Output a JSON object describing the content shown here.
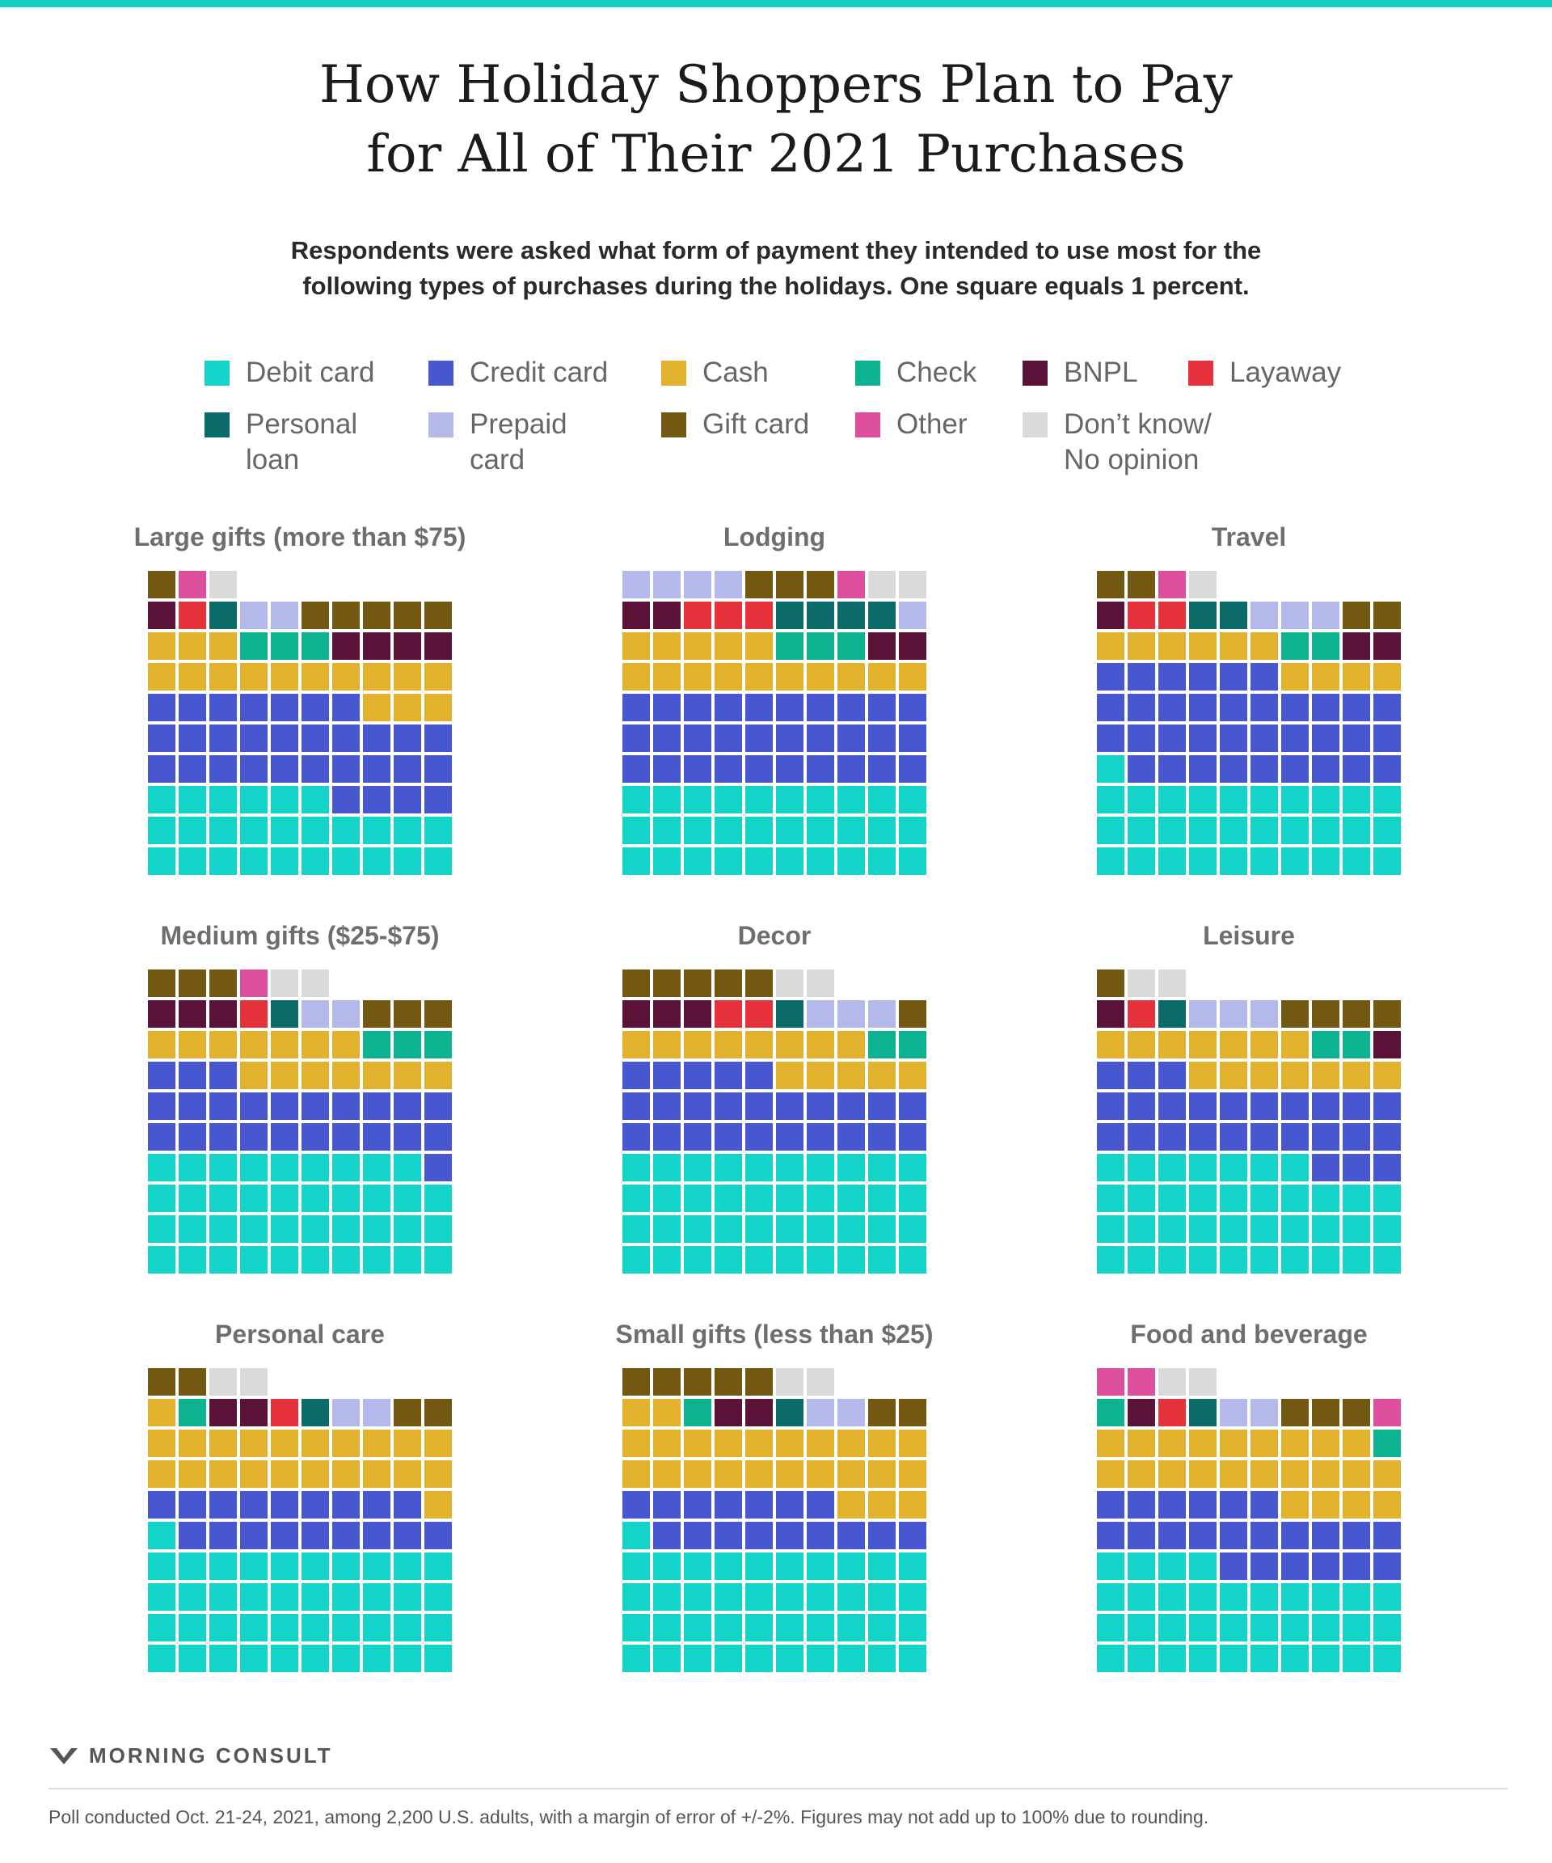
{
  "header": {
    "title_line1": "How Holiday Shoppers Plan to Pay",
    "title_line2": "for All of Their 2021 Purchases",
    "subtitle_line1": "Respondents were asked what form of payment they intended to use most for the",
    "subtitle_line2": "following types of purchases during the holidays. One square equals 1 percent."
  },
  "legend": [
    {
      "key": "debit",
      "label": "Debit card",
      "color": "#13d4c8"
    },
    {
      "key": "credit",
      "label": "Credit card",
      "color": "#4757cf"
    },
    {
      "key": "cash",
      "label": "Cash",
      "color": "#e3b22c"
    },
    {
      "key": "check",
      "label": "Check",
      "color": "#0cb390"
    },
    {
      "key": "bnpl",
      "label": "BNPL",
      "color": "#5b1239"
    },
    {
      "key": "layaway",
      "label": "Layaway",
      "color": "#e6323b"
    },
    {
      "key": "loan",
      "label": "Personal\nloan",
      "color": "#0b6b68"
    },
    {
      "key": "prepaid",
      "label": "Prepaid\ncard",
      "color": "#b3b9ea"
    },
    {
      "key": "gift",
      "label": "Gift card",
      "color": "#735812"
    },
    {
      "key": "other",
      "label": "Other",
      "color": "#dd4f9c"
    },
    {
      "key": "dk",
      "label": "Don’t know/\nNo opinion",
      "color": "#d9d9d9"
    }
  ],
  "chart_data": {
    "type": "waffle",
    "unit": "One square equals 1 percent",
    "panels": [
      {
        "title": "Large gifts (more than $75)",
        "values": {
          "debit": 26,
          "credit": 31,
          "cash": 16,
          "check": 3,
          "bnpl": 5,
          "layaway": 1,
          "loan": 1,
          "prepaid": 2,
          "gift": 6,
          "other": 1,
          "dk": 1
        }
      },
      {
        "title": "Lodging",
        "values": {
          "debit": 30,
          "credit": 30,
          "cash": 15,
          "check": 3,
          "bnpl": 4,
          "layaway": 3,
          "loan": 4,
          "prepaid": 5,
          "gift": 3,
          "other": 1,
          "dk": 2
        }
      },
      {
        "title": "Travel",
        "values": {
          "debit": 31,
          "credit": 35,
          "cash": 10,
          "check": 2,
          "bnpl": 3,
          "layaway": 2,
          "loan": 2,
          "prepaid": 3,
          "gift": 4,
          "other": 1,
          "dk": 1
        }
      },
      {
        "title": "Medium gifts ($25-$75)",
        "values": {
          "debit": 39,
          "credit": 24,
          "cash": 14,
          "check": 3,
          "bnpl": 3,
          "layaway": 1,
          "loan": 1,
          "prepaid": 2,
          "gift": 6,
          "other": 1,
          "dk": 2
        }
      },
      {
        "title": "Decor",
        "values": {
          "debit": 40,
          "credit": 25,
          "cash": 13,
          "check": 2,
          "bnpl": 3,
          "layaway": 2,
          "loan": 1,
          "prepaid": 3,
          "gift": 6,
          "other": 0,
          "dk": 2
        }
      },
      {
        "title": "Leisure",
        "values": {
          "debit": 37,
          "credit": 26,
          "cash": 14,
          "check": 2,
          "bnpl": 2,
          "layaway": 1,
          "loan": 1,
          "prepaid": 3,
          "gift": 5,
          "other": 0,
          "dk": 2
        }
      },
      {
        "title": "Personal care",
        "values": {
          "debit": 41,
          "credit": 18,
          "cash": 22,
          "check": 1,
          "bnpl": 2,
          "layaway": 1,
          "loan": 1,
          "prepaid": 2,
          "gift": 4,
          "other": 0,
          "dk": 2
        }
      },
      {
        "title": "Small gifts (less than $25)",
        "values": {
          "debit": 41,
          "credit": 16,
          "cash": 25,
          "check": 1,
          "bnpl": 2,
          "layaway": 0,
          "loan": 1,
          "prepaid": 2,
          "gift": 7,
          "other": 0,
          "dk": 2
        }
      },
      {
        "title": "Food and beverage",
        "values": {
          "debit": 34,
          "credit": 22,
          "cash": 23,
          "check": 2,
          "bnpl": 1,
          "layaway": 1,
          "loan": 1,
          "prepaid": 2,
          "gift": 3,
          "other": 3,
          "dk": 2
        }
      }
    ]
  },
  "footer": {
    "brand": "MORNING CONSULT",
    "note": "Poll conducted Oct. 21-24, 2021, among 2,200 U.S. adults, with a margin of error of +/-2%. Figures may not add up to 100% due to rounding."
  }
}
